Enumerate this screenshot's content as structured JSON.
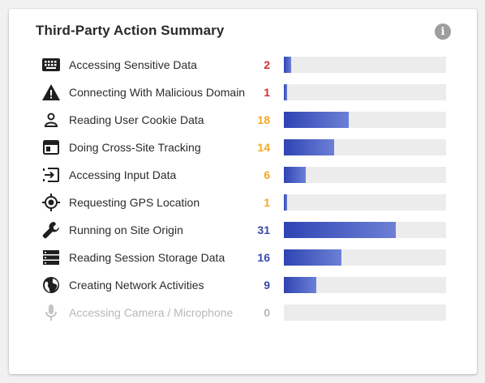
{
  "card": {
    "title": "Third-Party Action Summary",
    "info_glyph": "i"
  },
  "max_value": 31,
  "items": [
    {
      "icon": "keyboard-icon",
      "label": "Accessing Sensitive Data",
      "count": "2",
      "value": 2,
      "color": "#d32f2f"
    },
    {
      "icon": "warning-icon",
      "label": "Connecting With Malicious Domain",
      "count": "1",
      "value": 1,
      "color": "#d32f2f"
    },
    {
      "icon": "person-icon",
      "label": "Reading User Cookie Data",
      "count": "18",
      "value": 18,
      "color": "#f5a623"
    },
    {
      "icon": "browser-window-icon",
      "label": "Doing Cross-Site Tracking",
      "count": "14",
      "value": 14,
      "color": "#f5a623"
    },
    {
      "icon": "input-icon",
      "label": "Accessing Input Data",
      "count": "6",
      "value": 6,
      "color": "#f5a623"
    },
    {
      "icon": "gps-icon",
      "label": "Requesting GPS Location",
      "count": "1",
      "value": 1,
      "color": "#f5a623"
    },
    {
      "icon": "wrench-icon",
      "label": "Running on Site Origin",
      "count": "31",
      "value": 31,
      "color": "#3949ab"
    },
    {
      "icon": "storage-icon",
      "label": "Reading Session Storage Data",
      "count": "16",
      "value": 16,
      "color": "#3949ab"
    },
    {
      "icon": "globe-icon",
      "label": "Creating Network Activities",
      "count": "9",
      "value": 9,
      "color": "#3949ab"
    },
    {
      "icon": "microphone-icon",
      "label": "Accessing Camera / Microphone",
      "count": "0",
      "value": 0,
      "color": "#b8b8b8",
      "disabled": true
    }
  ]
}
